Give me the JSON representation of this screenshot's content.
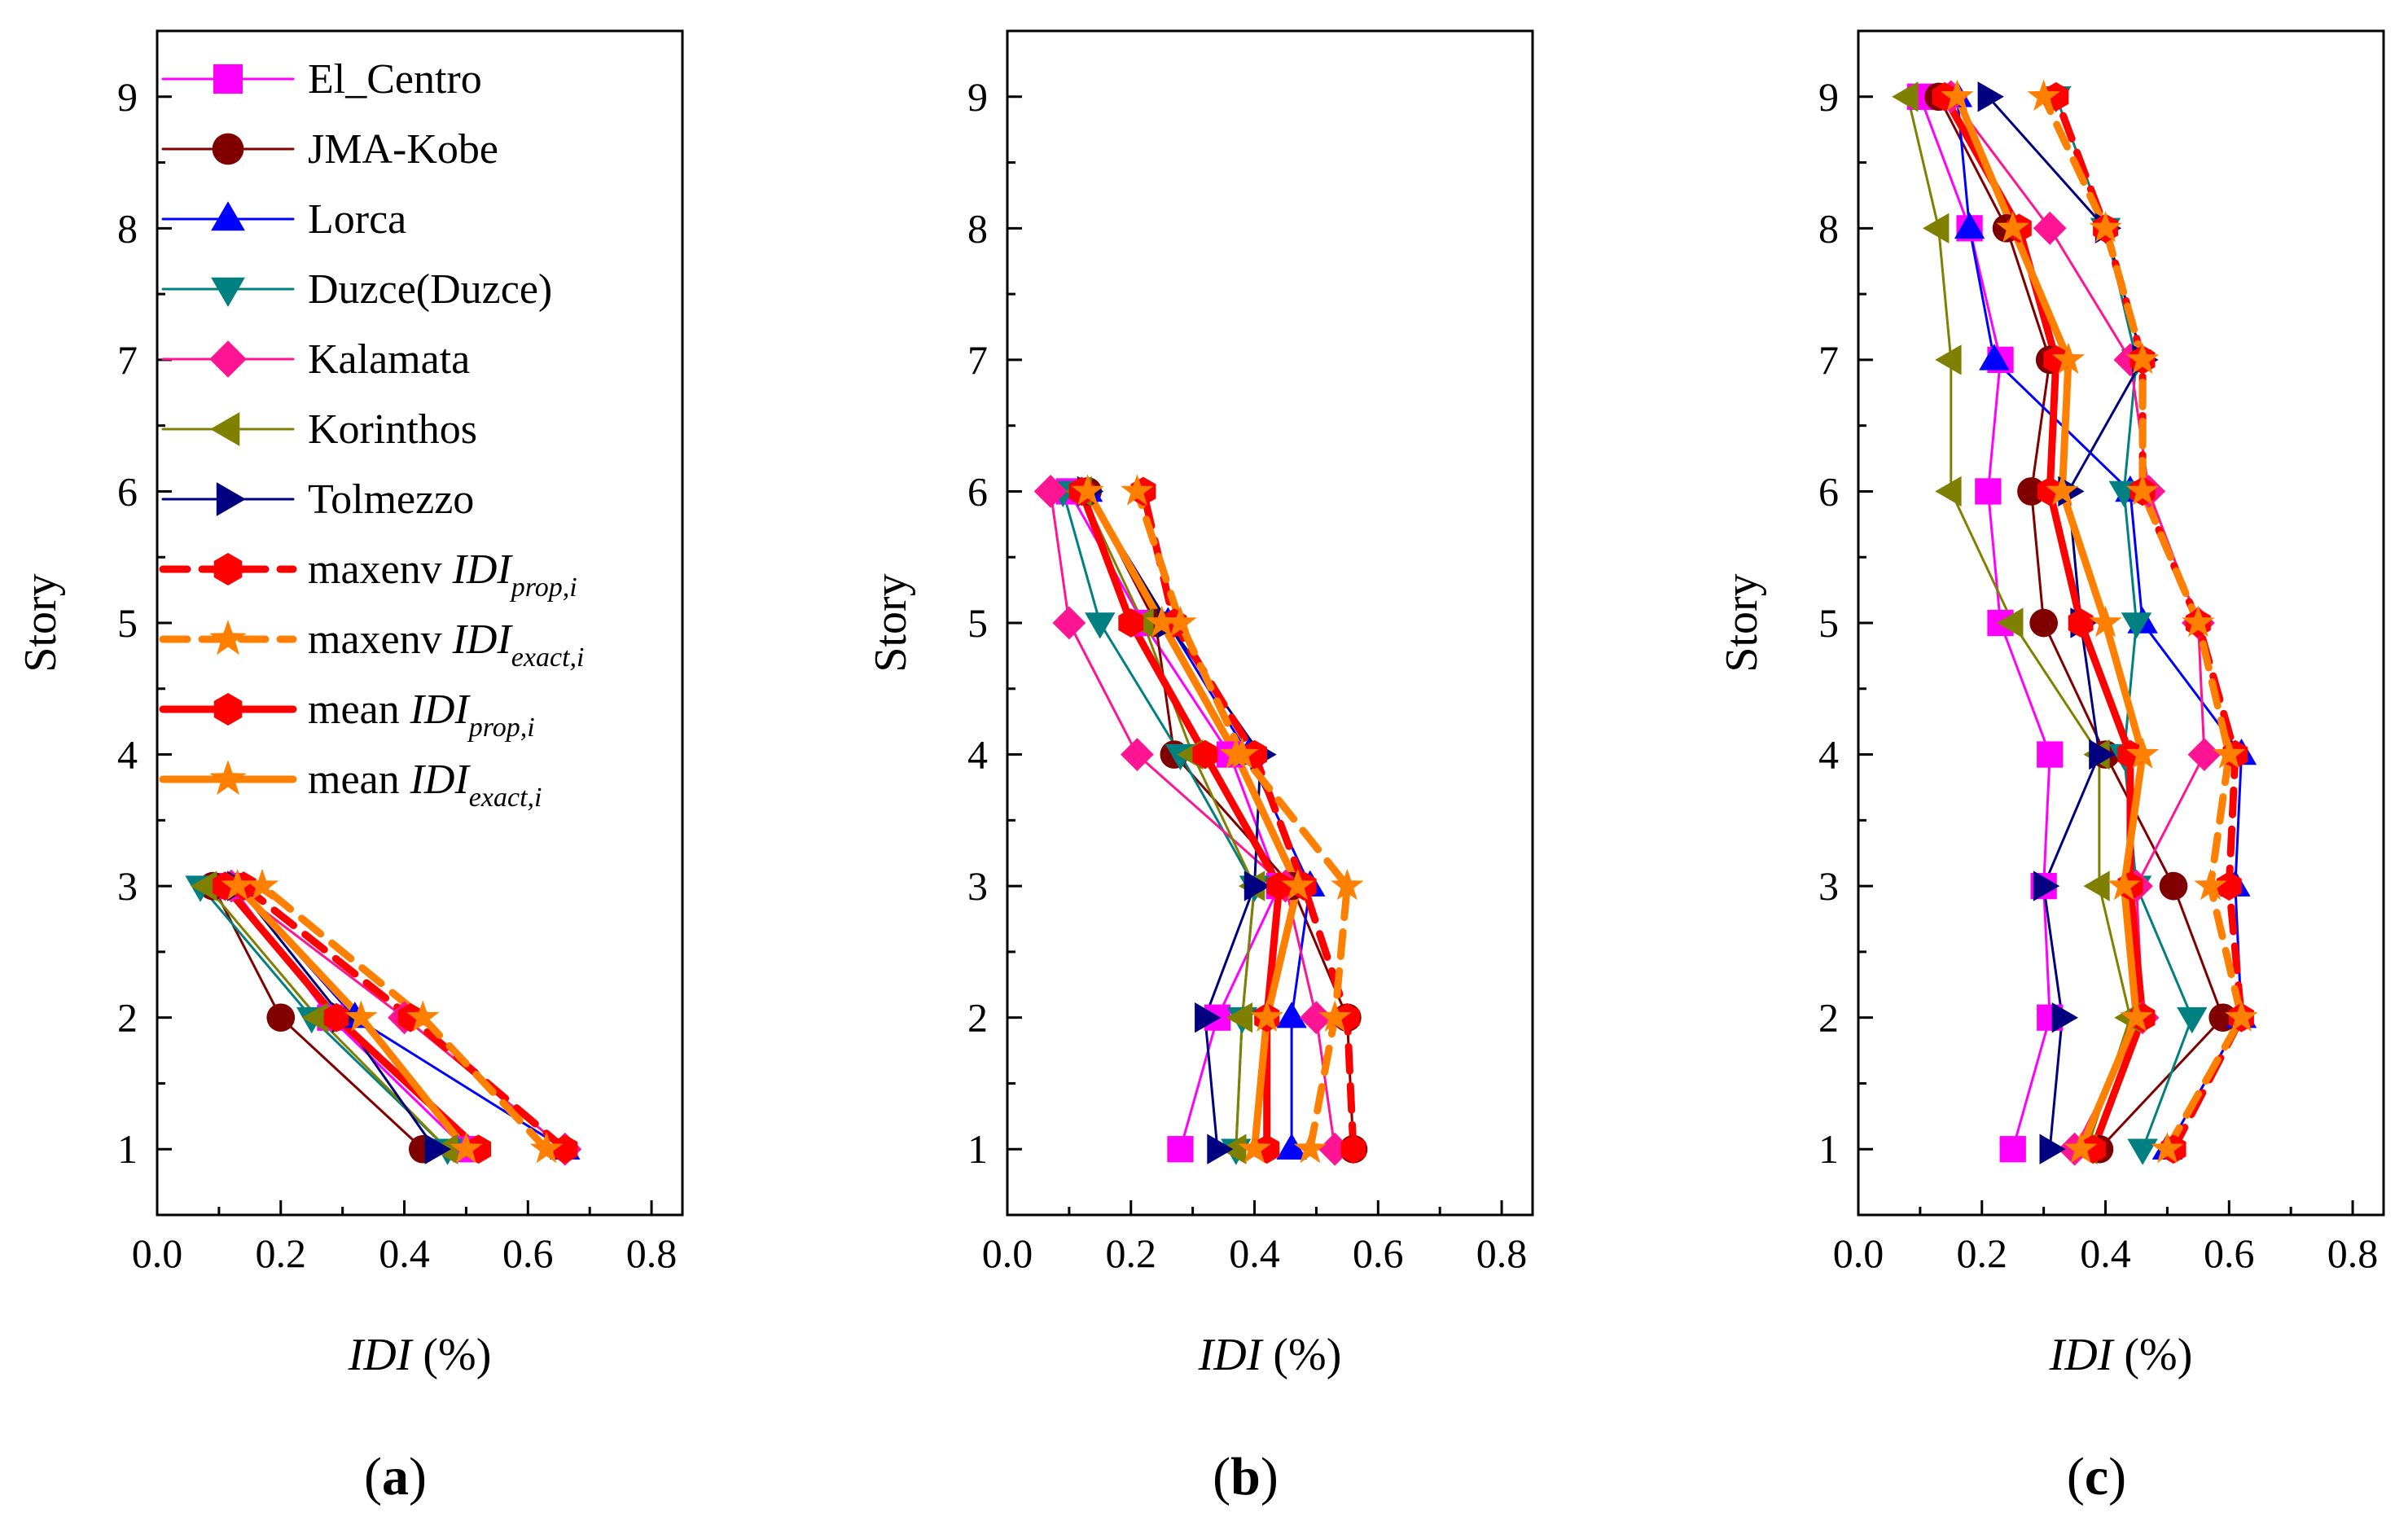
{
  "series_styles": [
    {
      "name": "El_Centro",
      "color": "#FF00FF",
      "marker": "square",
      "dash": "solid",
      "width": "thin"
    },
    {
      "name": "JMA-Kobe",
      "color": "#800000",
      "marker": "circle",
      "dash": "solid",
      "width": "thin"
    },
    {
      "name": "Lorca",
      "color": "#0000FF",
      "marker": "triangle-up",
      "dash": "solid",
      "width": "thin"
    },
    {
      "name": "Duzce(Duzce)",
      "color": "#008080",
      "marker": "triangle-down",
      "dash": "solid",
      "width": "thin"
    },
    {
      "name": "Kalamata",
      "color": "#FF1493",
      "marker": "diamond",
      "dash": "solid",
      "width": "thin"
    },
    {
      "name": "Korinthos",
      "color": "#808000",
      "marker": "triangle-left",
      "dash": "solid",
      "width": "thin"
    },
    {
      "name": "Tolmezzo",
      "color": "#000080",
      "marker": "triangle-right",
      "dash": "solid",
      "width": "thin"
    },
    {
      "name": "maxenv IDI_prop,i",
      "color": "#FF0000",
      "marker": "hexagon",
      "dash": "dashed",
      "width": "thick"
    },
    {
      "name": "maxenv IDI_exact,i",
      "color": "#FF8000",
      "marker": "star",
      "dash": "dashed",
      "width": "thick"
    },
    {
      "name": "mean IDI_prop,i",
      "color": "#FF0000",
      "marker": "hexagon",
      "dash": "solid",
      "width": "thick"
    },
    {
      "name": "mean IDI_exact,i",
      "color": "#FF8000",
      "marker": "star",
      "dash": "solid",
      "width": "thick"
    }
  ],
  "legend": [
    {
      "label": "El_Centro",
      "prefix": "",
      "italic": "",
      "sub": ""
    },
    {
      "label": "JMA-Kobe",
      "prefix": "",
      "italic": "",
      "sub": ""
    },
    {
      "label": "Lorca",
      "prefix": "",
      "italic": "",
      "sub": ""
    },
    {
      "label": "Duzce(Duzce)",
      "prefix": "",
      "italic": "",
      "sub": ""
    },
    {
      "label": "Kalamata",
      "prefix": "",
      "italic": "",
      "sub": ""
    },
    {
      "label": "Korinthos",
      "prefix": "",
      "italic": "",
      "sub": ""
    },
    {
      "label": "Tolmezzo",
      "prefix": "",
      "italic": "",
      "sub": ""
    },
    {
      "label": "",
      "prefix": "maxenv ",
      "italic": "IDI",
      "sub": "prop,i"
    },
    {
      "label": "",
      "prefix": "maxenv ",
      "italic": "IDI",
      "sub": "exact,i"
    },
    {
      "label": "",
      "prefix": "mean ",
      "italic": "IDI",
      "sub": "prop,i"
    },
    {
      "label": "",
      "prefix": "mean ",
      "italic": "IDI",
      "sub": "exact,i"
    }
  ],
  "chart_data": [
    {
      "type": "line",
      "panel_label": "(a)",
      "panel_letter": "a",
      "xlabel_italic": "IDI",
      "xlabel_rest": " (%)",
      "ylabel": "Story",
      "xlim": [
        0.0,
        0.85
      ],
      "ylim": [
        0.5,
        9.5
      ],
      "xticks": [
        "0.0",
        "0.2",
        "0.4",
        "0.6",
        "0.8"
      ],
      "yticks": [
        "1",
        "2",
        "3",
        "4",
        "5",
        "6",
        "7",
        "8",
        "9"
      ],
      "y": [
        1,
        2,
        3
      ],
      "series": [
        {
          "name": "El_Centro",
          "values": [
            0.5,
            0.28,
            0.12
          ]
        },
        {
          "name": "JMA-Kobe",
          "values": [
            0.43,
            0.2,
            0.09
          ]
        },
        {
          "name": "Lorca",
          "values": [
            0.66,
            0.32,
            0.13
          ]
        },
        {
          "name": "Duzce(Duzce)",
          "values": [
            0.47,
            0.25,
            0.07
          ]
        },
        {
          "name": "Kalamata",
          "values": [
            0.66,
            0.4,
            0.12
          ]
        },
        {
          "name": "Korinthos",
          "values": [
            0.47,
            0.26,
            0.08
          ]
        },
        {
          "name": "Tolmezzo",
          "values": [
            0.45,
            0.3,
            0.13
          ]
        },
        {
          "name": "maxenv IDI_prop,i",
          "values": [
            0.66,
            0.41,
            0.14
          ]
        },
        {
          "name": "maxenv IDI_exact,i",
          "values": [
            0.63,
            0.43,
            0.17
          ]
        },
        {
          "name": "mean IDI_prop,i",
          "values": [
            0.52,
            0.29,
            0.11
          ]
        },
        {
          "name": "mean IDI_exact,i",
          "values": [
            0.5,
            0.33,
            0.13
          ]
        }
      ]
    },
    {
      "type": "line",
      "panel_label": "(b)",
      "panel_letter": "b",
      "xlabel_italic": "IDI",
      "xlabel_rest": " (%)",
      "ylabel": "Story",
      "xlim": [
        0.0,
        0.85
      ],
      "ylim": [
        0.5,
        9.5
      ],
      "xticks": [
        "0.0",
        "0.2",
        "0.4",
        "0.6",
        "0.8"
      ],
      "yticks": [
        "1",
        "2",
        "3",
        "4",
        "5",
        "6",
        "7",
        "8",
        "9"
      ],
      "y": [
        1,
        2,
        3,
        4,
        5,
        6
      ],
      "series": [
        {
          "name": "El_Centro",
          "values": [
            0.28,
            0.34,
            0.44,
            0.36,
            0.22,
            0.1
          ]
        },
        {
          "name": "JMA-Kobe",
          "values": [
            0.56,
            0.55,
            0.46,
            0.27,
            0.24,
            0.13
          ]
        },
        {
          "name": "Lorca",
          "values": [
            0.46,
            0.46,
            0.49,
            0.39,
            0.26,
            0.13
          ]
        },
        {
          "name": "Duzce(Duzce)",
          "values": [
            0.37,
            0.38,
            0.4,
            0.28,
            0.15,
            0.09
          ]
        },
        {
          "name": "Kalamata",
          "values": [
            0.53,
            0.5,
            0.45,
            0.21,
            0.1,
            0.07
          ]
        },
        {
          "name": "Korinthos",
          "values": [
            0.37,
            0.38,
            0.4,
            0.3,
            0.22,
            0.12
          ]
        },
        {
          "name": "Tolmezzo",
          "values": [
            0.34,
            0.32,
            0.4,
            0.41,
            0.26,
            0.13
          ]
        },
        {
          "name": "maxenv IDI_prop,i",
          "values": [
            0.56,
            0.55,
            0.48,
            0.4,
            0.27,
            0.22
          ]
        },
        {
          "name": "maxenv IDI_exact,i",
          "values": [
            0.49,
            0.53,
            0.55,
            0.38,
            0.28,
            0.21
          ]
        },
        {
          "name": "mean IDI_prop,i",
          "values": [
            0.42,
            0.42,
            0.44,
            0.32,
            0.2,
            0.12
          ]
        },
        {
          "name": "mean IDI_exact,i",
          "values": [
            0.4,
            0.42,
            0.47,
            0.37,
            0.25,
            0.13
          ]
        }
      ]
    },
    {
      "type": "line",
      "panel_label": "(c)",
      "panel_letter": "c",
      "xlabel_italic": "IDI",
      "xlabel_rest": " (%)",
      "ylabel": "Story",
      "xlim": [
        0.0,
        0.85
      ],
      "ylim": [
        0.5,
        9.5
      ],
      "xticks": [
        "0.0",
        "0.2",
        "0.4",
        "0.6",
        "0.8"
      ],
      "yticks": [
        "1",
        "2",
        "3",
        "4",
        "5",
        "6",
        "7",
        "8",
        "9"
      ],
      "y": [
        1,
        2,
        3,
        4,
        5,
        6,
        7,
        8,
        9
      ],
      "series": [
        {
          "name": "El_Centro",
          "values": [
            0.25,
            0.31,
            0.3,
            0.31,
            0.23,
            0.21,
            0.23,
            0.18,
            0.1
          ]
        },
        {
          "name": "JMA-Kobe",
          "values": [
            0.39,
            0.59,
            0.51,
            0.4,
            0.3,
            0.28,
            0.31,
            0.24,
            0.13
          ]
        },
        {
          "name": "Lorca",
          "values": [
            0.5,
            0.62,
            0.61,
            0.62,
            0.46,
            0.44,
            0.22,
            0.18,
            0.16
          ]
        },
        {
          "name": "Duzce(Duzce)",
          "values": [
            0.46,
            0.54,
            0.45,
            0.43,
            0.45,
            0.43,
            0.45,
            0.4,
            0.32
          ]
        },
        {
          "name": "Kalamata",
          "values": [
            0.35,
            0.46,
            0.45,
            0.56,
            0.55,
            0.47,
            0.44,
            0.31,
            0.15
          ]
        },
        {
          "name": "Korinthos",
          "values": [
            0.37,
            0.44,
            0.39,
            0.39,
            0.25,
            0.15,
            0.15,
            0.13,
            0.08
          ]
        },
        {
          "name": "Tolmezzo",
          "values": [
            0.31,
            0.33,
            0.3,
            0.39,
            0.36,
            0.34,
            0.46,
            0.4,
            0.21
          ]
        },
        {
          "name": "maxenv IDI_prop,i",
          "values": [
            0.51,
            0.62,
            0.6,
            0.61,
            0.55,
            0.46,
            0.46,
            0.4,
            0.32
          ]
        },
        {
          "name": "maxenv IDI_exact,i",
          "values": [
            0.5,
            0.62,
            0.57,
            0.6,
            0.55,
            0.46,
            0.46,
            0.4,
            0.3
          ]
        },
        {
          "name": "mean IDI_prop,i",
          "values": [
            0.38,
            0.46,
            0.44,
            0.44,
            0.36,
            0.31,
            0.32,
            0.26,
            0.14
          ]
        },
        {
          "name": "mean IDI_exact,i",
          "values": [
            0.36,
            0.45,
            0.43,
            0.46,
            0.4,
            0.33,
            0.34,
            0.25,
            0.16
          ]
        }
      ]
    }
  ]
}
